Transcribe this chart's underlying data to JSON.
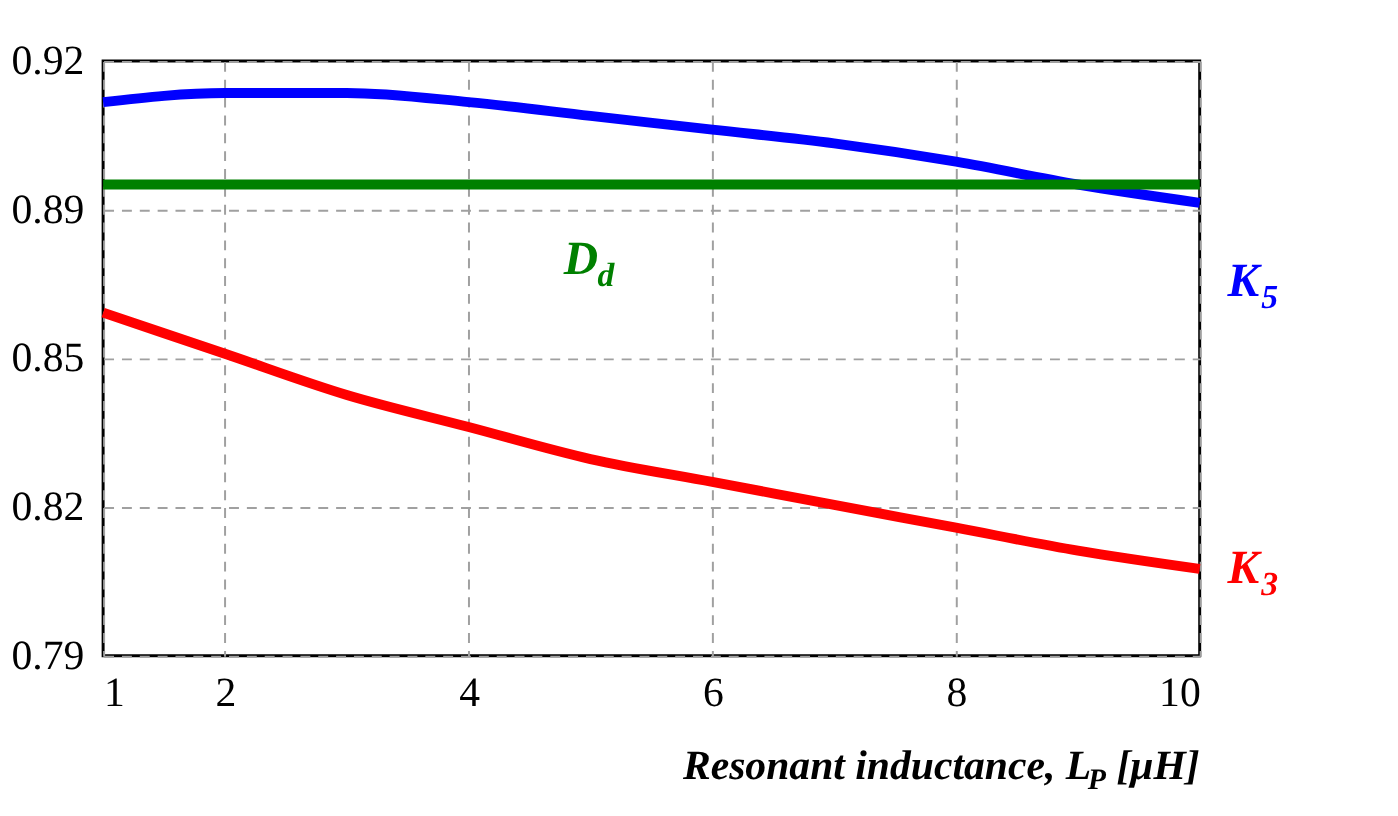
{
  "chart_data": {
    "type": "line",
    "xlabel": "Resonant inductance, L$_{P}$ [μH]",
    "x": [
      1,
      2,
      3,
      4,
      5,
      6,
      7,
      8,
      9,
      10
    ],
    "series": [
      {
        "name": "K$_{5}$",
        "color": "#0000ff",
        "values": [
          0.911,
          0.913,
          0.913,
          0.911,
          0.908,
          0.905,
          0.902,
          0.898,
          0.893,
          0.889
        ]
      },
      {
        "name": "D$_{d}$",
        "color": "#008000",
        "x": [
          1,
          10
        ],
        "values": [
          0.893,
          0.893
        ]
      },
      {
        "name": "K$_{3}$",
        "color": "#ff0000",
        "values": [
          0.865,
          0.856,
          0.847,
          0.84,
          0.833,
          0.828,
          0.823,
          0.818,
          0.813,
          0.809
        ]
      }
    ],
    "xlim": [
      1,
      10
    ],
    "xticks": [
      1,
      2,
      4,
      6,
      8,
      10
    ],
    "ylim": [
      0.79,
      0.92
    ],
    "yticks": [
      {
        "value": 0.79,
        "label": "0.79"
      },
      {
        "value": 0.8225,
        "label": "0.82"
      },
      {
        "value": 0.855,
        "label": "0.85"
      },
      {
        "value": 0.8875,
        "label": "0.89"
      },
      {
        "value": 0.92,
        "label": "0.92"
      }
    ],
    "grid": true,
    "marker": "none",
    "line_style": "solid"
  }
}
